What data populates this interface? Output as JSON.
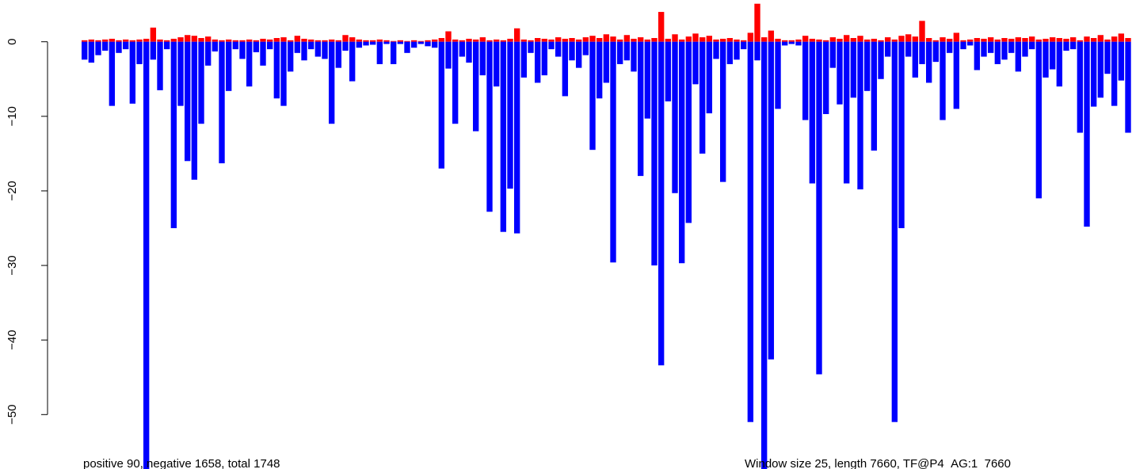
{
  "chart_data": {
    "type": "bar",
    "annotations": [
      "positive 90, negative 1658, total 1748",
      "Window size 25, length 7660, TF@P4_AG:1_7660"
    ],
    "ylim": [
      -57.3,
      5.6
    ],
    "yticks": [
      {
        "value": -50,
        "label": "−50"
      },
      {
        "value": -40,
        "label": "−40"
      },
      {
        "value": -30,
        "label": "−30"
      },
      {
        "value": -20,
        "label": "−20"
      },
      {
        "value": -10,
        "label": "−10"
      },
      0
    ],
    "series": [
      {
        "color": "#ff0000",
        "values": [
          0.2,
          0.3,
          0.2,
          0.3,
          0.4,
          0.2,
          0.3,
          0.2,
          0.3,
          0.4,
          1.9,
          0.3,
          0.2,
          0.4,
          0.6,
          0.9,
          0.8,
          0.5,
          0.7,
          0.3,
          0.2,
          0.3,
          0.2,
          0.2,
          0.3,
          0.2,
          0.4,
          0.3,
          0.5,
          0.6,
          0.2,
          0.8,
          0.4,
          0.3,
          0.2,
          0.2,
          0.3,
          0.2,
          0.9,
          0.6,
          0.3,
          0.2,
          0.2,
          0.3,
          0.2,
          0.1,
          0.2,
          0.1,
          0.2,
          0.1,
          0.2,
          0.3,
          0.5,
          1.4,
          0.3,
          0.2,
          0.4,
          0.3,
          0.6,
          0.2,
          0.3,
          0.2,
          0.4,
          1.8,
          0.3,
          0.2,
          0.5,
          0.4,
          0.3,
          0.6,
          0.4,
          0.5,
          0.3,
          0.6,
          0.8,
          0.5,
          1.0,
          0.7,
          0.3,
          0.9,
          0.4,
          0.6,
          0.3,
          0.5,
          4.0,
          0.4,
          1.0,
          0.3,
          0.7,
          1.1,
          0.6,
          0.8,
          0.3,
          0.4,
          0.5,
          0.3,
          0.2,
          1.2,
          5.1,
          0.6,
          1.5,
          0.4,
          0.2,
          0.2,
          0.3,
          0.8,
          0.4,
          0.3,
          0.2,
          0.6,
          0.4,
          0.9,
          0.5,
          0.8,
          0.3,
          0.4,
          0.2,
          0.6,
          0.3,
          0.8,
          1.0,
          0.7,
          2.8,
          0.5,
          0.2,
          0.6,
          0.4,
          1.2,
          0.2,
          0.3,
          0.5,
          0.4,
          0.6,
          0.3,
          0.5,
          0.4,
          0.6,
          0.5,
          0.7,
          0.3,
          0.4,
          0.6,
          0.5,
          0.4,
          0.6,
          0.2,
          0.7,
          0.5,
          0.9,
          0.3,
          0.7,
          1.1,
          0.5
        ]
      },
      {
        "color": "#0000ff",
        "values": [
          -2.4,
          -2.8,
          -1.8,
          -1.2,
          -8.6,
          -1.5,
          -1.0,
          -8.3,
          -3.0,
          -60,
          -2.4,
          -6.5,
          -1.0,
          -25,
          -8.6,
          -16,
          -18.5,
          -11,
          -3.2,
          -1.3,
          -16.3,
          -6.6,
          -1.0,
          -2.3,
          -6.0,
          -1.4,
          -3.2,
          -1.0,
          -7.6,
          -8.6,
          -4.0,
          -1.5,
          -2.5,
          -1.0,
          -2.0,
          -2.3,
          -11,
          -3.5,
          -1.2,
          -5.3,
          -0.8,
          -0.5,
          -0.4,
          -3.0,
          -0.3,
          -3.0,
          -0.3,
          -1.5,
          -0.8,
          -0.3,
          -0.6,
          -0.8,
          -17,
          -3.6,
          -11,
          -2.0,
          -2.8,
          -12,
          -4.5,
          -22.8,
          -6,
          -25.5,
          -19.7,
          -25.7,
          -4.8,
          -1.5,
          -5.5,
          -4.5,
          -1.0,
          -2.0,
          -7.3,
          -2.5,
          -3.5,
          -1.8,
          -14.5,
          -7.6,
          -5.5,
          -29.6,
          -3.0,
          -2.5,
          -4.0,
          -18,
          -10.3,
          -30,
          -43.4,
          -8,
          -20.3,
          -29.7,
          -24.3,
          -5.7,
          -15,
          -9.6,
          -2.3,
          -18.8,
          -3.0,
          -2.4,
          -1.0,
          -51,
          -2.5,
          -60,
          -42.6,
          -9.0,
          -0.5,
          -0.3,
          -0.5,
          -10.5,
          -19,
          -44.6,
          -9.7,
          -3.5,
          -8.4,
          -19,
          -7.5,
          -19.8,
          -6.6,
          -14.6,
          -5.0,
          -2.0,
          -51,
          -25,
          -2.0,
          -4.8,
          -3.0,
          -5.5,
          -2.7,
          -10.5,
          -1.5,
          -9.0,
          -1.0,
          -0.5,
          -3.8,
          -2.0,
          -1.5,
          -3.0,
          -2.4,
          -1.5,
          -4.0,
          -2.0,
          -1.0,
          -21,
          -4.8,
          -3.7,
          -6.0,
          -1.2,
          -1.0,
          -12.2,
          -24.8,
          -8.7,
          -7.5,
          -4.3,
          -8.6,
          -5.2,
          -12.2
        ]
      }
    ]
  }
}
